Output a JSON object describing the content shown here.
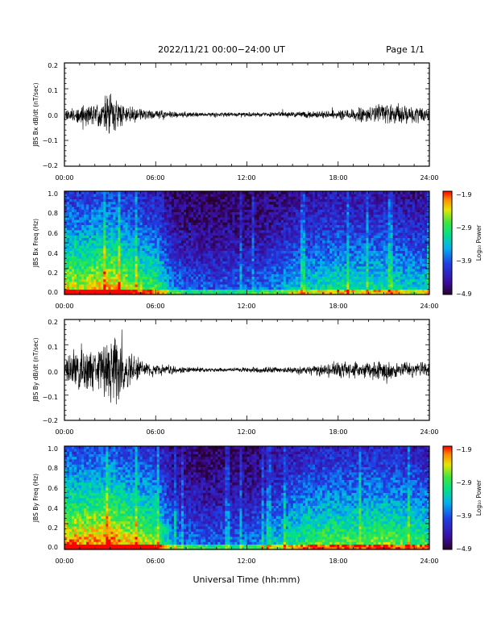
{
  "header": {
    "date_range": "2022/11/21  00:00−24:00 UT",
    "page": "Page 1/1"
  },
  "colors": {
    "axis": "#000000",
    "trace": "#000000",
    "background": "#ffffff"
  },
  "chart_data": [
    {
      "type": "line",
      "ylabel": "JBS Bx dB/dt (nT/sec)",
      "xlim": [
        "00:00",
        "24:00"
      ],
      "xticks": [
        "00:00",
        "06:00",
        "12:00",
        "18:00",
        "24:00"
      ],
      "ylim": [
        -0.2,
        0.2
      ],
      "yticks": [
        "0.2",
        "0.1",
        "0.0",
        "−0.1",
        "−0.2"
      ],
      "series": [
        {
          "x_hours": [
            0,
            1,
            2,
            3,
            4,
            5,
            6,
            7,
            8,
            9,
            10,
            11,
            12,
            13,
            14,
            15,
            16,
            17,
            18,
            19,
            20,
            21,
            22,
            23,
            24
          ],
          "amplitude": [
            0.03,
            0.04,
            0.05,
            0.09,
            0.05,
            0.025,
            0.02,
            0.015,
            0.012,
            0.01,
            0.01,
            0.01,
            0.01,
            0.01,
            0.012,
            0.012,
            0.015,
            0.015,
            0.02,
            0.03,
            0.04,
            0.05,
            0.05,
            0.04,
            0.03
          ]
        }
      ]
    },
    {
      "type": "heatmap",
      "ylabel": "JBS Bx Freq (Hz)",
      "xlim": [
        "00:00",
        "24:00"
      ],
      "xticks": [
        "00:00",
        "06:00",
        "12:00",
        "18:00",
        "24:00"
      ],
      "ylim": [
        0.0,
        1.0
      ],
      "yticks": [
        "1.0",
        "0.8",
        "0.6",
        "0.4",
        "0.2",
        "0.0"
      ],
      "colorbar": {
        "label": "Log₁₀ Power",
        "ticks": [
          "−1.9",
          "−2.9",
          "−3.9",
          "−4.9"
        ]
      },
      "activity_by_hour": [
        0.62,
        0.6,
        0.65,
        0.68,
        0.58,
        0.5,
        0.45,
        0.18,
        0.12,
        0.1,
        0.1,
        0.12,
        0.12,
        0.14,
        0.2,
        0.28,
        0.32,
        0.35,
        0.38,
        0.35,
        0.36,
        0.38,
        0.34,
        0.3,
        0.3
      ]
    },
    {
      "type": "line",
      "ylabel": "JBS By dB/dt (nT/sec)",
      "xlim": [
        "00:00",
        "24:00"
      ],
      "xticks": [
        "00:00",
        "06:00",
        "12:00",
        "18:00",
        "24:00"
      ],
      "ylim": [
        -0.2,
        0.2
      ],
      "yticks": [
        "0.2",
        "0.1",
        "0.0",
        "−0.1",
        "−0.2"
      ],
      "series": [
        {
          "x_hours": [
            0,
            1,
            2,
            3,
            4,
            5,
            6,
            7,
            8,
            9,
            10,
            11,
            12,
            13,
            14,
            15,
            16,
            17,
            18,
            19,
            20,
            21,
            22,
            23,
            24
          ],
          "amplitude": [
            0.05,
            0.12,
            0.09,
            0.18,
            0.1,
            0.04,
            0.03,
            0.02,
            0.015,
            0.01,
            0.01,
            0.01,
            0.012,
            0.014,
            0.015,
            0.015,
            0.02,
            0.03,
            0.04,
            0.035,
            0.04,
            0.05,
            0.04,
            0.035,
            0.03
          ]
        }
      ]
    },
    {
      "type": "heatmap",
      "ylabel": "JBS By Freq (Hz)",
      "xlim": [
        "00:00",
        "24:00"
      ],
      "xticks": [
        "00:00",
        "06:00",
        "12:00",
        "18:00",
        "24:00"
      ],
      "ylim": [
        0.0,
        1.0
      ],
      "yticks": [
        "1.0",
        "0.8",
        "0.6",
        "0.4",
        "0.2",
        "0.0"
      ],
      "colorbar": {
        "label": "Log₁₀ Power",
        "ticks": [
          "−1.9",
          "−2.9",
          "−3.9",
          "−4.9"
        ]
      },
      "activity_by_hour": [
        0.72,
        0.7,
        0.72,
        0.74,
        0.66,
        0.6,
        0.55,
        0.22,
        0.15,
        0.12,
        0.12,
        0.14,
        0.15,
        0.2,
        0.3,
        0.4,
        0.45,
        0.48,
        0.5,
        0.48,
        0.5,
        0.52,
        0.48,
        0.45,
        0.42
      ]
    }
  ],
  "xlabel": "Universal Time (hh:mm)"
}
